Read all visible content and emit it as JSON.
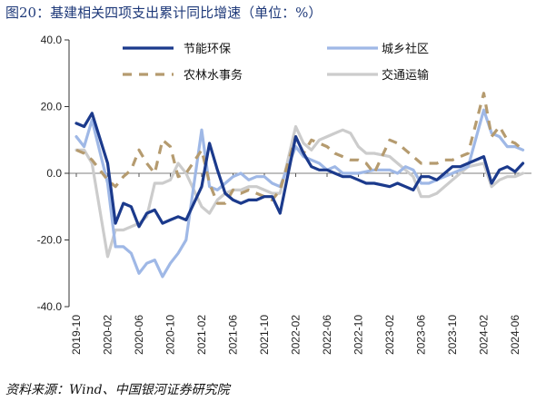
{
  "figure": {
    "title": "图20：基建相关四项支出累计同比增速（单位：%）",
    "source": "资料来源：Wind、中国银河证券研究院"
  },
  "colors": {
    "节能环保": "#1b3a8c",
    "城乡社区": "#9fb8e6",
    "农林水事务": "#b59b6f",
    "交通运输": "#cccccc"
  },
  "chart_data": {
    "type": "line",
    "title": "图20：基建相关四项支出累计同比增速（单位：%）",
    "xlabel": "",
    "ylabel": "",
    "ylim": [
      -40,
      40
    ],
    "y_ticks": [
      "40.0",
      "20.0",
      "0.0",
      "-20.0",
      "-40.0"
    ],
    "x_tick_labels": [
      "2019-10",
      "2020-02",
      "2020-06",
      "2020-10",
      "2021-02",
      "2021-06",
      "2021-10",
      "2022-02",
      "2022-06",
      "2022-10",
      "2023-02",
      "2023-06",
      "2023-10",
      "2024-02",
      "2024-06"
    ],
    "x_start": "2019-10",
    "legend_position": "top",
    "grid": false,
    "series": [
      {
        "name": "节能环保",
        "style": "solid",
        "values": [
          [
            "2019-10",
            15
          ],
          [
            "2019-11",
            14
          ],
          [
            "2019-12",
            18
          ],
          [
            "2020-02",
            3
          ],
          [
            "2020-03",
            -15
          ],
          [
            "2020-04",
            -9
          ],
          [
            "2020-05",
            -10
          ],
          [
            "2020-06",
            -16
          ],
          [
            "2020-07",
            -12
          ],
          [
            "2020-08",
            -11
          ],
          [
            "2020-09",
            -15
          ],
          [
            "2020-10",
            -14
          ],
          [
            "2020-11",
            -13
          ],
          [
            "2020-12",
            -14
          ],
          [
            "2021-02",
            -4
          ],
          [
            "2021-03",
            9
          ],
          [
            "2021-04",
            1
          ],
          [
            "2021-05",
            -6
          ],
          [
            "2021-06",
            -8
          ],
          [
            "2021-07",
            -9
          ],
          [
            "2021-08",
            -8
          ],
          [
            "2021-09",
            -8
          ],
          [
            "2021-10",
            -7
          ],
          [
            "2021-11",
            -7
          ],
          [
            "2021-12",
            -12
          ],
          [
            "2022-02",
            11
          ],
          [
            "2022-03",
            6
          ],
          [
            "2022-04",
            2
          ],
          [
            "2022-05",
            1
          ],
          [
            "2022-06",
            1
          ],
          [
            "2022-07",
            0
          ],
          [
            "2022-08",
            -1
          ],
          [
            "2022-09",
            -1
          ],
          [
            "2022-10",
            -2
          ],
          [
            "2022-11",
            -3
          ],
          [
            "2022-12",
            -3
          ],
          [
            "2023-02",
            -4
          ],
          [
            "2023-03",
            -3
          ],
          [
            "2023-04",
            -4
          ],
          [
            "2023-05",
            -5
          ],
          [
            "2023-06",
            -1
          ],
          [
            "2023-07",
            -1
          ],
          [
            "2023-08",
            -2
          ],
          [
            "2023-09",
            0
          ],
          [
            "2023-10",
            2
          ],
          [
            "2023-11",
            2
          ],
          [
            "2023-12",
            3
          ],
          [
            "2024-02",
            5
          ],
          [
            "2024-03",
            -3
          ],
          [
            "2024-04",
            1
          ],
          [
            "2024-05",
            2
          ],
          [
            "2024-06",
            0.5
          ],
          [
            "2024-07",
            3
          ]
        ]
      },
      {
        "name": "城乡社区",
        "style": "solid",
        "values": [
          [
            "2019-10",
            11
          ],
          [
            "2019-11",
            8
          ],
          [
            "2019-12",
            16
          ],
          [
            "2020-02",
            -3
          ],
          [
            "2020-03",
            -22
          ],
          [
            "2020-04",
            -22
          ],
          [
            "2020-05",
            -24
          ],
          [
            "2020-06",
            -30
          ],
          [
            "2020-07",
            -27
          ],
          [
            "2020-08",
            -26
          ],
          [
            "2020-09",
            -31
          ],
          [
            "2020-10",
            -27
          ],
          [
            "2020-11",
            -24
          ],
          [
            "2020-12",
            -20
          ],
          [
            "2021-02",
            13
          ],
          [
            "2021-03",
            -4
          ],
          [
            "2021-04",
            -5
          ],
          [
            "2021-05",
            -3
          ],
          [
            "2021-06",
            -1
          ],
          [
            "2021-07",
            0
          ],
          [
            "2021-08",
            -2
          ],
          [
            "2021-09",
            -1
          ],
          [
            "2021-10",
            -1
          ],
          [
            "2021-11",
            -3
          ],
          [
            "2021-12",
            -4
          ],
          [
            "2022-02",
            8
          ],
          [
            "2022-03",
            5
          ],
          [
            "2022-04",
            4
          ],
          [
            "2022-05",
            3
          ],
          [
            "2022-06",
            1
          ],
          [
            "2022-07",
            2
          ],
          [
            "2022-08",
            0
          ],
          [
            "2022-09",
            0
          ],
          [
            "2022-10",
            0
          ],
          [
            "2022-11",
            0.5
          ],
          [
            "2022-12",
            1
          ],
          [
            "2023-02",
            1
          ],
          [
            "2023-03",
            0
          ],
          [
            "2023-04",
            2
          ],
          [
            "2023-05",
            1
          ],
          [
            "2023-06",
            -3
          ],
          [
            "2023-07",
            -3
          ],
          [
            "2023-08",
            -2
          ],
          [
            "2023-09",
            -1
          ],
          [
            "2023-10",
            0
          ],
          [
            "2023-11",
            1
          ],
          [
            "2023-12",
            2
          ],
          [
            "2024-02",
            19
          ],
          [
            "2024-03",
            12
          ],
          [
            "2024-04",
            11
          ],
          [
            "2024-05",
            8
          ],
          [
            "2024-06",
            8
          ],
          [
            "2024-07",
            7
          ]
        ]
      },
      {
        "name": "农林水事务",
        "style": "dashed",
        "values": [
          [
            "2019-10",
            7
          ],
          [
            "2019-11",
            6
          ],
          [
            "2019-12",
            4
          ],
          [
            "2020-02",
            -2
          ],
          [
            "2020-03",
            -4
          ],
          [
            "2020-04",
            -1
          ],
          [
            "2020-05",
            1
          ],
          [
            "2020-06",
            7
          ],
          [
            "2020-07",
            3
          ],
          [
            "2020-08",
            0
          ],
          [
            "2020-09",
            10
          ],
          [
            "2020-10",
            8
          ],
          [
            "2020-11",
            -1
          ],
          [
            "2020-12",
            0
          ],
          [
            "2021-02",
            7
          ],
          [
            "2021-03",
            -3
          ],
          [
            "2021-04",
            -9
          ],
          [
            "2021-05",
            -9
          ],
          [
            "2021-06",
            -5
          ],
          [
            "2021-07",
            -6
          ],
          [
            "2021-08",
            -5
          ],
          [
            "2021-09",
            -6
          ],
          [
            "2021-10",
            -7
          ],
          [
            "2021-11",
            -8
          ],
          [
            "2021-12",
            -5
          ],
          [
            "2022-02",
            11
          ],
          [
            "2022-03",
            6
          ],
          [
            "2022-04",
            10
          ],
          [
            "2022-05",
            9
          ],
          [
            "2022-06",
            8
          ],
          [
            "2022-07",
            6
          ],
          [
            "2022-08",
            5
          ],
          [
            "2022-09",
            4
          ],
          [
            "2022-10",
            4
          ],
          [
            "2022-11",
            3
          ],
          [
            "2022-12",
            0
          ],
          [
            "2023-02",
            10
          ],
          [
            "2023-03",
            9
          ],
          [
            "2023-04",
            7
          ],
          [
            "2023-05",
            5
          ],
          [
            "2023-06",
            3
          ],
          [
            "2023-07",
            3
          ],
          [
            "2023-08",
            3
          ],
          [
            "2023-09",
            4
          ],
          [
            "2023-10",
            4
          ],
          [
            "2023-11",
            5
          ],
          [
            "2023-12",
            6
          ],
          [
            "2024-02",
            24
          ],
          [
            "2024-03",
            11
          ],
          [
            "2024-04",
            14
          ],
          [
            "2024-05",
            10
          ],
          [
            "2024-06",
            9
          ],
          [
            "2024-07",
            7
          ]
        ]
      },
      {
        "name": "交通运输",
        "style": "solid",
        "values": [
          [
            "2019-10",
            7
          ],
          [
            "2019-11",
            7
          ],
          [
            "2019-12",
            3
          ],
          [
            "2020-02",
            -25
          ],
          [
            "2020-03",
            -17
          ],
          [
            "2020-04",
            -17
          ],
          [
            "2020-05",
            -16
          ],
          [
            "2020-06",
            -15
          ],
          [
            "2020-07",
            -13
          ],
          [
            "2020-08",
            -3
          ],
          [
            "2020-09",
            -3
          ],
          [
            "2020-10",
            -2
          ],
          [
            "2020-11",
            3
          ],
          [
            "2020-12",
            0
          ],
          [
            "2021-02",
            -10
          ],
          [
            "2021-03",
            -12
          ],
          [
            "2021-04",
            -8
          ],
          [
            "2021-05",
            -6
          ],
          [
            "2021-06",
            -5
          ],
          [
            "2021-07",
            -5
          ],
          [
            "2021-08",
            -4
          ],
          [
            "2021-09",
            -4
          ],
          [
            "2021-10",
            -5
          ],
          [
            "2021-11",
            -6
          ],
          [
            "2021-12",
            -6
          ],
          [
            "2022-02",
            14
          ],
          [
            "2022-03",
            9
          ],
          [
            "2022-04",
            7
          ],
          [
            "2022-05",
            10
          ],
          [
            "2022-06",
            11
          ],
          [
            "2022-07",
            12
          ],
          [
            "2022-08",
            13
          ],
          [
            "2022-09",
            12
          ],
          [
            "2022-10",
            8
          ],
          [
            "2022-11",
            6
          ],
          [
            "2022-12",
            6
          ],
          [
            "2023-02",
            5
          ],
          [
            "2023-03",
            3
          ],
          [
            "2023-04",
            1
          ],
          [
            "2023-05",
            -1
          ],
          [
            "2023-06",
            -7
          ],
          [
            "2023-07",
            -7
          ],
          [
            "2023-08",
            -6
          ],
          [
            "2023-09",
            -4
          ],
          [
            "2023-10",
            -2
          ],
          [
            "2023-11",
            0
          ],
          [
            "2023-12",
            2
          ],
          [
            "2024-02",
            3
          ],
          [
            "2024-03",
            -4
          ],
          [
            "2024-04",
            -2
          ],
          [
            "2024-05",
            -1
          ],
          [
            "2024-06",
            -1
          ],
          [
            "2024-07",
            0
          ]
        ]
      }
    ]
  }
}
